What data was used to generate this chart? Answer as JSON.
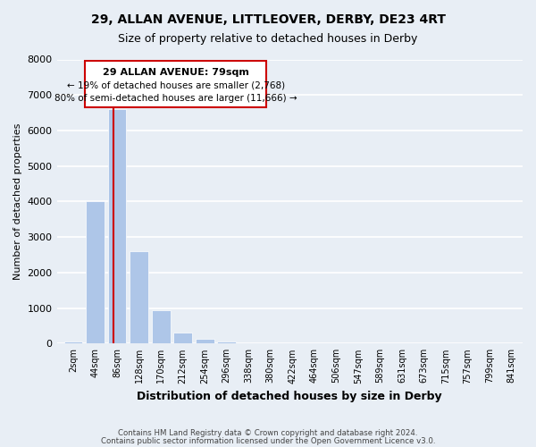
{
  "title": "29, ALLAN AVENUE, LITTLEOVER, DERBY, DE23 4RT",
  "subtitle": "Size of property relative to detached houses in Derby",
  "xlabel": "Distribution of detached houses by size in Derby",
  "ylabel": "Number of detached properties",
  "bin_labels": [
    "2sqm",
    "44sqm",
    "86sqm",
    "128sqm",
    "170sqm",
    "212sqm",
    "254sqm",
    "296sqm",
    "338sqm",
    "380sqm",
    "422sqm",
    "464sqm",
    "506sqm",
    "547sqm",
    "589sqm",
    "631sqm",
    "673sqm",
    "715sqm",
    "757sqm",
    "799sqm",
    "841sqm"
  ],
  "bar_heights": [
    50,
    4000,
    6600,
    2600,
    950,
    320,
    140,
    50,
    0,
    0,
    0,
    0,
    0,
    0,
    0,
    0,
    0,
    0,
    0,
    0,
    0
  ],
  "bar_color": "#aec6e8",
  "annotation_label": "29 ALLAN AVENUE: 79sqm",
  "annotation_line1": "← 19% of detached houses are smaller (2,768)",
  "annotation_line2": "80% of semi-detached houses are larger (11,666) →",
  "vline_color": "#cc0000",
  "ylim": [
    0,
    8000
  ],
  "yticks": [
    0,
    1000,
    2000,
    3000,
    4000,
    5000,
    6000,
    7000,
    8000
  ],
  "footer1": "Contains HM Land Registry data © Crown copyright and database right 2024.",
  "footer2": "Contains public sector information licensed under the Open Government Licence v3.0.",
  "bg_color": "#e8eef5"
}
